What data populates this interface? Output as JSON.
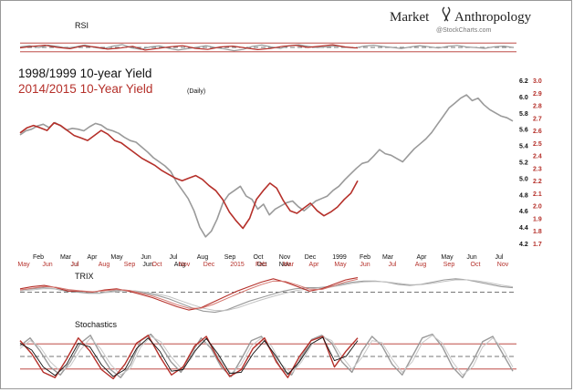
{
  "brand": {
    "title": "Market",
    "title2": "Anthropology",
    "credit": "@StockCharts.com"
  },
  "legend": {
    "line1": "1998/1999 10-year Yield",
    "line2": "2014/2015  10-Year Yield",
    "line2_note": "(Daily)"
  },
  "colors": {
    "series_1998": "#9a9a9a",
    "series_2014": "#b5302a",
    "grid": "#b5302a",
    "black": "#111111"
  },
  "chart_data": [
    {
      "type": "line",
      "name": "main",
      "ylim_left": [
        4.2,
        6.2
      ],
      "yticks_left": [
        "6.2",
        "6.0",
        "5.8",
        "5.6",
        "5.4",
        "5.2",
        "5.0",
        "4.8",
        "4.6",
        "4.4",
        "4.2"
      ],
      "ylim_right": [
        1.7,
        3.0
      ],
      "yticks_right": [
        "3.0",
        "2.9",
        "2.8",
        "2.7",
        "2.6",
        "2.5",
        "2.4",
        "2.3",
        "2.2",
        "2.1",
        "2.0",
        "1.9",
        "1.8",
        "1.7"
      ],
      "xticks_top": [
        "Feb",
        "Mar",
        "Apr",
        "May",
        "Jun",
        "Jul",
        "Aug",
        "Sep",
        "Oct",
        "Nov",
        "Dec",
        "1999",
        "Feb",
        "Mar",
        "Apr",
        "May",
        "Jun",
        "Jul"
      ],
      "xticks_top_2": [
        "Jul",
        "Jun",
        "Aug",
        "Oct",
        "Nov"
      ],
      "xticks_bottom": [
        "May",
        "Jun",
        "Jul",
        "Aug",
        "Sep",
        "Oct",
        "Nov",
        "Dec",
        "2015",
        "Feb",
        "Mar",
        "Apr",
        "May",
        "Jun",
        "Jul",
        "Aug",
        "Sep",
        "Oct",
        "Nov"
      ],
      "series": [
        {
          "key": "s1998",
          "values": [
            5.53,
            5.58,
            5.6,
            5.64,
            5.66,
            5.62,
            5.68,
            5.64,
            5.59,
            5.61,
            5.6,
            5.58,
            5.63,
            5.67,
            5.65,
            5.6,
            5.58,
            5.55,
            5.5,
            5.46,
            5.44,
            5.38,
            5.32,
            5.25,
            5.2,
            5.15,
            5.08,
            4.95,
            4.85,
            4.75,
            4.6,
            4.4,
            4.28,
            4.35,
            4.5,
            4.7,
            4.8,
            4.85,
            4.9,
            4.78,
            4.74,
            4.62,
            4.68,
            4.55,
            4.62,
            4.66,
            4.7,
            4.72,
            4.65,
            4.6,
            4.66,
            4.72,
            4.75,
            4.78,
            4.85,
            4.9,
            4.98,
            5.05,
            5.12,
            5.18,
            5.2,
            5.27,
            5.35,
            5.3,
            5.28,
            5.24,
            5.2,
            5.28,
            5.36,
            5.42,
            5.48,
            5.56,
            5.66,
            5.76,
            5.86,
            5.92,
            5.98,
            6.02,
            5.95,
            5.98,
            5.9,
            5.84,
            5.8,
            5.76,
            5.74,
            5.7
          ]
        },
        {
          "key": "s2014",
          "values": [
            2.58,
            2.62,
            2.64,
            2.62,
            2.6,
            2.66,
            2.64,
            2.6,
            2.56,
            2.54,
            2.52,
            2.56,
            2.6,
            2.57,
            2.52,
            2.5,
            2.46,
            2.42,
            2.38,
            2.35,
            2.32,
            2.28,
            2.25,
            2.22,
            2.2,
            2.22,
            2.24,
            2.21,
            2.16,
            2.12,
            2.05,
            1.95,
            1.88,
            1.82,
            1.9,
            2.05,
            2.12,
            2.18,
            2.14,
            2.04,
            1.96,
            1.94,
            1.98,
            2.02,
            1.96,
            1.92,
            1.95,
            1.99,
            2.05,
            2.1,
            2.2
          ]
        }
      ]
    },
    {
      "type": "line",
      "name": "rsi",
      "title": "RSI",
      "ylim": [
        0,
        100
      ],
      "levels": [
        70,
        50,
        30
      ],
      "series": [
        {
          "key": "rsi1998",
          "values": [
            52,
            58,
            49,
            60,
            55,
            47,
            53,
            61,
            50,
            44,
            56,
            63,
            48,
            41,
            52,
            57,
            46,
            38,
            44,
            51,
            58,
            49,
            43,
            35,
            41,
            55,
            61,
            52,
            46,
            58,
            62,
            55,
            49,
            53,
            57,
            51,
            47,
            56,
            60,
            54,
            50,
            45,
            52,
            58,
            53,
            47,
            55,
            59,
            52,
            49,
            46,
            53,
            56,
            50
          ]
        },
        {
          "key": "rsi2014",
          "values": [
            48,
            55,
            60,
            50,
            44,
            57,
            52,
            42,
            47,
            55,
            38,
            45,
            53,
            58,
            46,
            41,
            52,
            56,
            48,
            40,
            45,
            55,
            60,
            50,
            56,
            62,
            52,
            47
          ]
        }
      ]
    },
    {
      "type": "line",
      "name": "trix",
      "title": "TRIX",
      "ylim": [
        -1,
        1
      ],
      "levels": [
        0
      ],
      "series": [
        {
          "key": "trix1998",
          "values": [
            0.1,
            0.15,
            0.2,
            0.15,
            0.05,
            0.0,
            -0.05,
            -0.05,
            0.05,
            0.1,
            0.05,
            -0.05,
            -0.15,
            -0.3,
            -0.5,
            -0.7,
            -0.85,
            -0.9,
            -0.8,
            -0.6,
            -0.4,
            -0.25,
            -0.1,
            0.05,
            0.15,
            0.2,
            0.2,
            0.25,
            0.35,
            0.45,
            0.5,
            0.5,
            0.45,
            0.35,
            0.3,
            0.35,
            0.45,
            0.55,
            0.6,
            0.55,
            0.45,
            0.35,
            0.25,
            0.2
          ]
        },
        {
          "key": "trix1998b",
          "values": [
            0.05,
            0.1,
            0.15,
            0.15,
            0.1,
            0.05,
            0.0,
            -0.03,
            0.0,
            0.06,
            0.06,
            0.0,
            -0.08,
            -0.2,
            -0.38,
            -0.56,
            -0.72,
            -0.82,
            -0.82,
            -0.7,
            -0.52,
            -0.35,
            -0.2,
            -0.06,
            0.06,
            0.14,
            0.18,
            0.22,
            0.3,
            0.4,
            0.46,
            0.48,
            0.46,
            0.4,
            0.34,
            0.34,
            0.4,
            0.48,
            0.55,
            0.55,
            0.5,
            0.42,
            0.32,
            0.24
          ]
        },
        {
          "key": "trix2014",
          "values": [
            0.15,
            0.25,
            0.3,
            0.2,
            0.05,
            0.05,
            0.0,
            0.1,
            0.15,
            0.05,
            -0.1,
            -0.25,
            -0.45,
            -0.65,
            -0.8,
            -0.7,
            -0.45,
            -0.2,
            0.05,
            0.25,
            0.45,
            0.6,
            0.45,
            0.25,
            0.05,
            0.15,
            0.35,
            0.55,
            0.65
          ]
        },
        {
          "key": "trix2014b",
          "values": [
            0.1,
            0.18,
            0.25,
            0.22,
            0.12,
            0.06,
            0.02,
            0.06,
            0.12,
            0.08,
            -0.04,
            -0.18,
            -0.36,
            -0.56,
            -0.72,
            -0.72,
            -0.55,
            -0.32,
            -0.08,
            0.14,
            0.34,
            0.5,
            0.48,
            0.32,
            0.14,
            0.12,
            0.28,
            0.46,
            0.58
          ]
        }
      ]
    },
    {
      "type": "line",
      "name": "stochastics",
      "title": "Stochastics",
      "ylim": [
        0,
        100
      ],
      "levels": [
        80,
        50,
        20
      ],
      "series": [
        {
          "key": "st1998",
          "values": [
            70,
            85,
            60,
            30,
            15,
            40,
            75,
            90,
            55,
            25,
            10,
            35,
            80,
            92,
            70,
            40,
            20,
            55,
            85,
            65,
            30,
            12,
            45,
            80,
            88,
            60,
            25,
            15,
            50,
            82,
            90,
            75,
            40,
            20,
            60,
            88,
            70,
            35,
            15,
            50,
            85,
            92,
            68,
            30,
            10,
            40,
            78,
            88,
            55,
            22
          ]
        },
        {
          "key": "st1998b",
          "values": [
            65,
            80,
            68,
            40,
            22,
            32,
            62,
            85,
            65,
            35,
            15,
            28,
            68,
            88,
            78,
            50,
            28,
            45,
            78,
            72,
            40,
            18,
            35,
            70,
            85,
            70,
            35,
            18,
            40,
            72,
            88,
            80,
            50,
            26,
            48,
            80,
            76,
            45,
            20,
            40,
            76,
            90,
            75,
            40,
            15,
            30,
            68,
            85,
            65,
            30
          ]
        },
        {
          "key": "st2014",
          "values": [
            80,
            55,
            20,
            10,
            45,
            85,
            60,
            25,
            8,
            35,
            75,
            90,
            50,
            15,
            30,
            70,
            88,
            45,
            12,
            25,
            65,
            85,
            40,
            10,
            50,
            80,
            88,
            30,
            60,
            85
          ]
        },
        {
          "key": "st2014b",
          "values": [
            75,
            62,
            30,
            14,
            35,
            75,
            68,
            34,
            12,
            25,
            65,
            85,
            60,
            22,
            25,
            60,
            84,
            55,
            18,
            20,
            55,
            80,
            50,
            16,
            40,
            74,
            86,
            42,
            50,
            80
          ]
        }
      ]
    }
  ]
}
